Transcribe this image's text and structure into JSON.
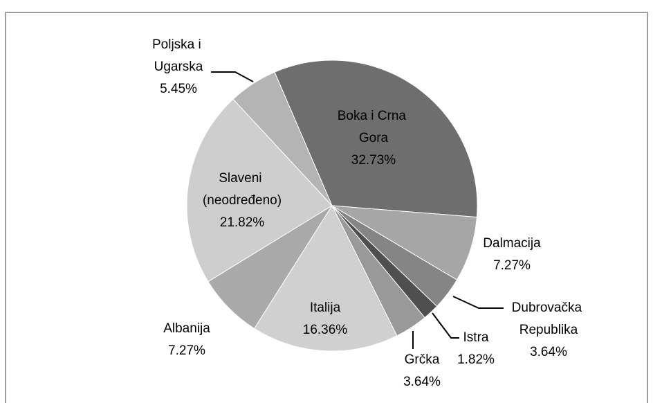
{
  "chart_data": {
    "type": "pie",
    "categories": [
      "Boka i Crna Gora",
      "Dalmacija",
      "Dubrovačka Republika",
      "Istra",
      "Grčka",
      "Italija",
      "Albanija",
      "Slaveni (neodređeno)",
      "Poljska i Ugarska"
    ],
    "values": [
      32.73,
      7.27,
      3.64,
      1.82,
      3.64,
      16.36,
      7.27,
      21.82,
      5.45
    ],
    "value_labels": [
      "32.73%",
      "7.27%",
      "3.64%",
      "1.82%",
      "3.64%",
      "16.36%",
      "7.27%",
      "21.82%",
      "5.45%"
    ],
    "colors": [
      "#6e6e6e",
      "#a6a6a6",
      "#858585",
      "#4f4f4f",
      "#999999",
      "#d0d0d0",
      "#a9a9a9",
      "#cecece",
      "#b4b4b4"
    ]
  }
}
